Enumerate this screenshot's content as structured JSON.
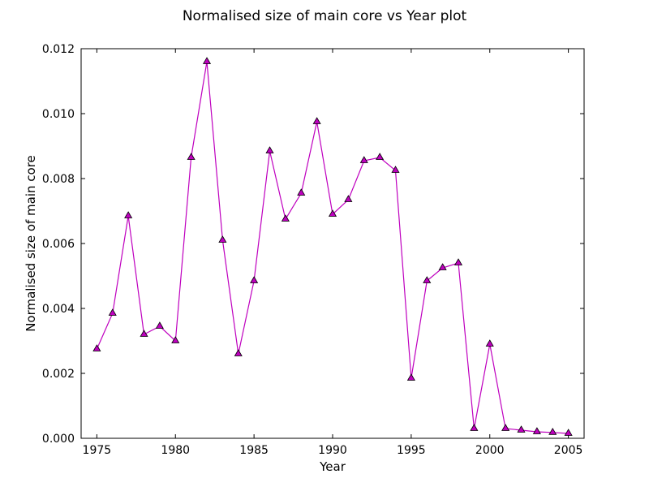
{
  "chart_data": {
    "type": "line",
    "title": "Normalised size of main core vs Year plot",
    "xlabel": "Year",
    "ylabel": "Normalised size of main core",
    "xlim": [
      1974,
      2006
    ],
    "ylim": [
      0.0,
      0.012
    ],
    "xticks": [
      1975,
      1980,
      1985,
      1990,
      1995,
      2000,
      2005
    ],
    "xtick_labels": [
      "1975",
      "1980",
      "1985",
      "1990",
      "1995",
      "2000",
      "2005"
    ],
    "yticks": [
      0.0,
      0.002,
      0.004,
      0.006,
      0.008,
      0.01,
      0.012
    ],
    "ytick_labels": [
      "0.000",
      "0.002",
      "0.004",
      "0.006",
      "0.008",
      "0.010",
      "0.012"
    ],
    "grid": false,
    "series": [
      {
        "color": "#bf00bf",
        "marker": "triangle",
        "marker_color": "#bf00bf",
        "x": [
          1975,
          1976,
          1977,
          1978,
          1979,
          1980,
          1981,
          1982,
          1983,
          1984,
          1985,
          1986,
          1987,
          1988,
          1989,
          1990,
          1991,
          1992,
          1993,
          1994,
          1995,
          1996,
          1997,
          1998,
          1999,
          2000,
          2001,
          2002,
          2003,
          2004,
          2005
        ],
        "y": [
          0.00275,
          0.00385,
          0.00685,
          0.0032,
          0.00345,
          0.003,
          0.00865,
          0.0116,
          0.0061,
          0.0026,
          0.00485,
          0.00885,
          0.00675,
          0.00755,
          0.00975,
          0.0069,
          0.00735,
          0.00855,
          0.00865,
          0.00825,
          0.00185,
          0.00485,
          0.00525,
          0.0054,
          0.0003,
          0.0029,
          0.0003,
          0.00025,
          0.0002,
          0.00018,
          0.00015
        ]
      }
    ]
  }
}
